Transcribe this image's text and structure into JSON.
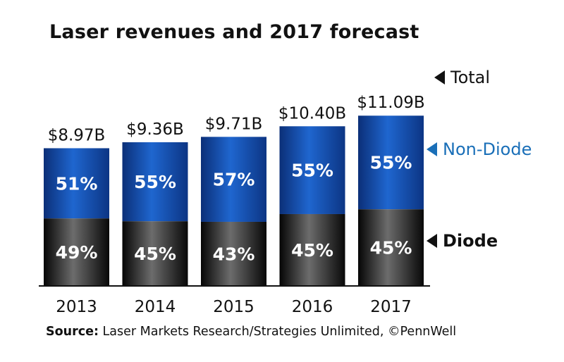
{
  "title": "Laser revenues and 2017 forecast",
  "legend": {
    "total": "Total",
    "non_diode": "Non-Diode",
    "diode": "Diode"
  },
  "source": {
    "prefix": "Source:",
    "text": "Laser Markets Research/Strategies Unlimited, ©PennWell"
  },
  "colors": {
    "non_diode": "#1552b2",
    "diode": "#1a1a1a",
    "legend_non_diode": "#1a6fb8"
  },
  "chart_data": {
    "type": "bar",
    "stacked": true,
    "unit": "USD billions",
    "categories": [
      "2013",
      "2014",
      "2015",
      "2016",
      "2017"
    ],
    "totals": [
      8.97,
      9.36,
      9.71,
      10.4,
      11.09
    ],
    "total_labels": [
      "$8.97B",
      "$9.36B",
      "$9.71B",
      "$10.40B",
      "$11.09B"
    ],
    "series": [
      {
        "name": "Diode",
        "percent": [
          49,
          45,
          43,
          45,
          45
        ],
        "labels": [
          "49%",
          "45%",
          "43%",
          "45%",
          "45%"
        ]
      },
      {
        "name": "Non-Diode",
        "percent": [
          51,
          55,
          57,
          55,
          55
        ],
        "labels": [
          "51%",
          "55%",
          "57%",
          "55%",
          "55%"
        ]
      }
    ],
    "legend_position": "right"
  }
}
